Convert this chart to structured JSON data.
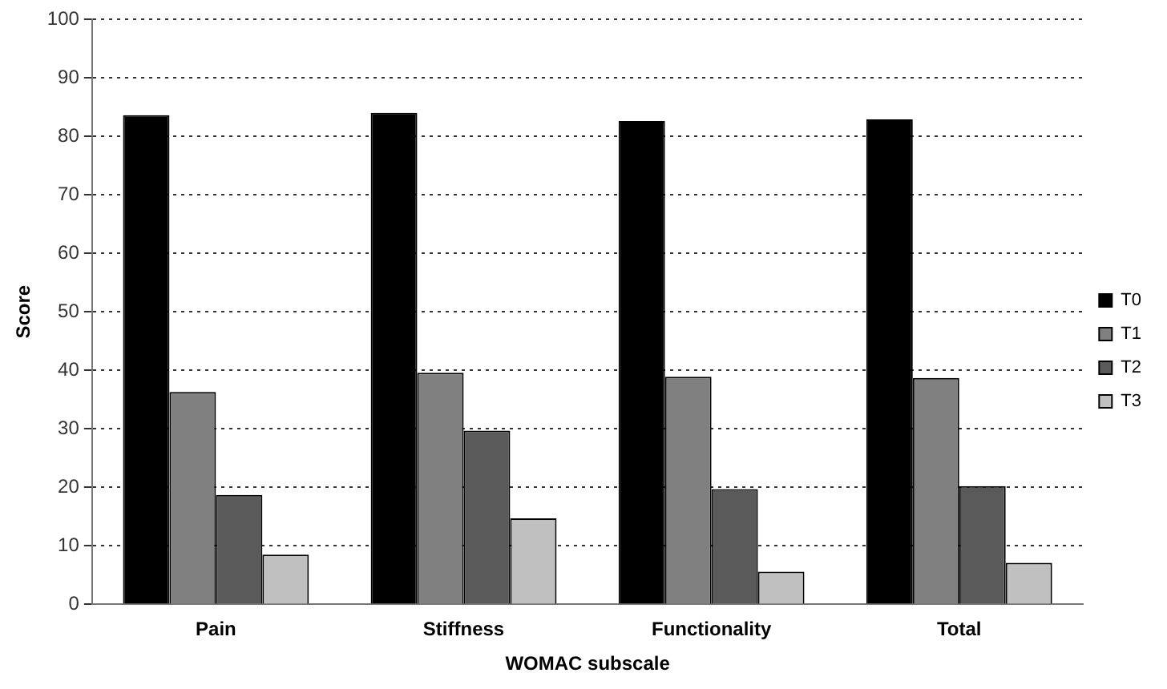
{
  "chart_data": {
    "type": "bar",
    "xlabel": "WOMAC subscale",
    "ylabel": "Score",
    "categories": [
      "Pain",
      "Stiffness",
      "Functionality",
      "Total"
    ],
    "series": [
      {
        "name": "T0",
        "color": "#000000",
        "values": [
          83.6,
          84,
          82.6,
          82.9
        ]
      },
      {
        "name": "T1",
        "color": "#808080",
        "values": [
          36.3,
          39.6,
          38.9,
          38.7
        ]
      },
      {
        "name": "T2",
        "color": "#5a5a5a",
        "values": [
          18.7,
          29.7,
          19.7,
          20.2
        ]
      },
      {
        "name": "T3",
        "color": "#c0c0c0",
        "values": [
          8.5,
          14.7,
          5.6,
          7.1
        ]
      }
    ],
    "ylim": [
      0,
      100
    ],
    "yticks": [
      0,
      10,
      20,
      30,
      40,
      50,
      60,
      70,
      80,
      90,
      100
    ],
    "grid": "y",
    "legend": "right"
  }
}
